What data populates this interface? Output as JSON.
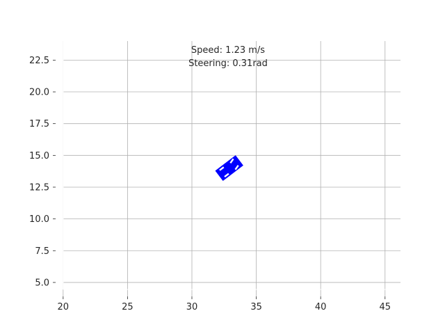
{
  "hud": {
    "speed_text": "Speed: 1.23 m/s",
    "steering_text": "Steering: 0.31rad"
  },
  "chart_data": {
    "type": "scatter",
    "xlim": [
      19.2,
      46.2
    ],
    "ylim": [
      3.9,
      24.0
    ],
    "x_ticks": [
      20,
      25,
      30,
      35,
      40,
      45
    ],
    "y_ticks": [
      5.0,
      7.5,
      10.0,
      12.5,
      15.0,
      17.5,
      20.0,
      22.5
    ],
    "grid": true,
    "vehicle": {
      "x": 32.9,
      "y": 14.0,
      "heading_rad": 0.65,
      "length": 2.0,
      "width": 1.0,
      "body_color": "#0000ff",
      "wheel_color": "#ffffff",
      "wheel_steer_rad": 0.31
    }
  },
  "colors": {
    "grid": "#b0b0b0",
    "text": "#262626"
  }
}
